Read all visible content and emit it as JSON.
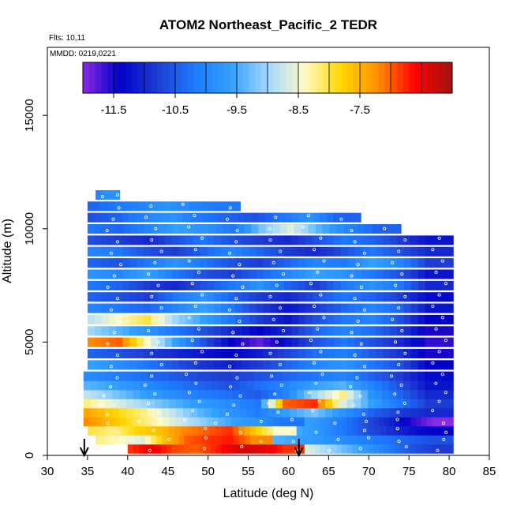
{
  "chart_data": {
    "type": "heatmap",
    "title": "ATOM2 Northeast_Pacific_2 TEDR",
    "flights_label": "Flts: 10,11",
    "dates_label": "MMDD: 0219,0221",
    "xlabel": "Latitude (deg N)",
    "ylabel": "Altitude (m)",
    "xlim": [
      30,
      85
    ],
    "ylim": [
      0,
      18000
    ],
    "x_ticks": [
      "30",
      "35",
      "40",
      "45",
      "50",
      "55",
      "60",
      "65",
      "70",
      "75",
      "80",
      "85"
    ],
    "y_ticks": [
      "0",
      "5000",
      "10000",
      "15000"
    ],
    "colorbar": {
      "range": [
        -12.0,
        -6.0
      ],
      "tick_values": [
        -11.5,
        -10.5,
        -9.5,
        -8.5,
        -7.5
      ],
      "tick_labels": [
        "-11.5",
        "-10.5",
        "-9.5",
        "-8.5",
        "-7.5"
      ],
      "colors": [
        "#8a2be2",
        "#0000c8",
        "#1e3cd2",
        "#1e78ff",
        "#32a0ff",
        "#a0d7ff",
        "#fffac8",
        "#ffd700",
        "#ff8c00",
        "#ff0000",
        "#a01414"
      ]
    },
    "markers": {
      "description": "down arrows at latitude",
      "latitudes": [
        34.6,
        61.3
      ]
    },
    "altitude_bins_m": [
      300,
      700,
      1100,
      1500,
      1900,
      2300,
      2700,
      3100,
      3500,
      4000,
      4500,
      5000,
      5500,
      6000,
      6500,
      7000,
      7500,
      8000,
      8500,
      9000,
      9500,
      10000,
      10500,
      11000,
      11500
    ],
    "rows": [
      {
        "alt": 300,
        "lat_start": 40,
        "lat_end": 62,
        "values": [
          -6.8,
          -6.5,
          -6.9,
          -7.0,
          -6.7,
          -6.3,
          -6.4,
          -6.8
        ]
      },
      {
        "alt": 300,
        "lat_start": 62,
        "lat_end": 80.5,
        "values": [
          -8.6,
          -9.0,
          -9.4,
          -9.8,
          -10.2,
          -10.6,
          -10.8
        ]
      },
      {
        "alt": 700,
        "lat_start": 36,
        "lat_end": 58,
        "values": [
          -8.2,
          -8.4,
          -8.6,
          -7.6,
          -7.0,
          -6.8,
          -6.7,
          -7.2
        ]
      },
      {
        "alt": 700,
        "lat_start": 58,
        "lat_end": 80.5,
        "values": [
          -9.4,
          -9.6,
          -9.8,
          -10.0,
          -10.2,
          -10.4,
          -10.6
        ]
      },
      {
        "alt": 1100,
        "lat_start": 35,
        "lat_end": 61,
        "values": [
          -8.0,
          -8.2,
          -7.8,
          -7.6,
          -7.2,
          -7.0,
          -6.8,
          -7.6,
          -8.4
        ]
      },
      {
        "alt": 1100,
        "lat_start": 61,
        "lat_end": 80.5,
        "values": [
          -9.5,
          -9.8,
          -10.2,
          -10.6,
          -10.9,
          -11.2,
          -11.4
        ]
      },
      {
        "alt": 1500,
        "lat_start": 34.5,
        "lat_end": 62,
        "values": [
          -7.2,
          -7.6,
          -8.0,
          -8.4,
          -8.8,
          -9.2,
          -9.6,
          -9.8,
          -10.2
        ]
      },
      {
        "alt": 1500,
        "lat_start": 62,
        "lat_end": 80.5,
        "values": [
          -9.6,
          -9.9,
          -10.3,
          -10.7,
          -11.1,
          -11.6,
          -12.0
        ]
      },
      {
        "alt": 1900,
        "lat_start": 34.5,
        "lat_end": 80.5,
        "values": [
          -7.4,
          -7.8,
          -8.2,
          -8.8,
          -9.4,
          -9.8,
          -10.1,
          -9.6,
          -9.2,
          -9.8,
          -10.4,
          -10.8,
          -11.0
        ]
      },
      {
        "alt": 2300,
        "lat_start": 34.5,
        "lat_end": 80.5,
        "values": [
          -8.2,
          -8.6,
          -9.0,
          -9.4,
          -9.7,
          -9.9,
          -10.2,
          -7.0,
          -6.8,
          -8.6,
          -9.6,
          -10.2,
          -10.8
        ]
      },
      {
        "alt": 2700,
        "lat_start": 34.5,
        "lat_end": 80.5,
        "values": [
          -8.8,
          -9.2,
          -9.6,
          -9.9,
          -10.1,
          -10.3,
          -10.5,
          -10.0,
          -9.0,
          -8.2,
          -9.8,
          -10.4,
          -11.0
        ]
      },
      {
        "alt": 3100,
        "lat_start": 34.5,
        "lat_end": 80.5,
        "values": [
          -9.4,
          -9.6,
          -9.9,
          -10.2,
          -10.4,
          -10.6,
          -10.3,
          -10.0,
          -9.6,
          -9.4,
          -10.0,
          -10.6,
          -11.2
        ]
      },
      {
        "alt": 3500,
        "lat_start": 34.5,
        "lat_end": 80.5,
        "values": [
          -9.9,
          -10.1,
          -10.3,
          -10.5,
          -10.7,
          -10.8,
          -10.6,
          -10.4,
          -10.2,
          -10.0,
          -10.4,
          -10.8,
          -11.3
        ]
      },
      {
        "alt": 4000,
        "lat_start": 35,
        "lat_end": 80.5,
        "values": [
          -9.6,
          -9.9,
          -10.2,
          -10.6,
          -10.9,
          -11.1,
          -10.8,
          -10.4,
          -10.0,
          -9.8,
          -10.2,
          -10.6,
          -11.4
        ]
      },
      {
        "alt": 4500,
        "lat_start": 35,
        "lat_end": 80.5,
        "values": [
          -10.4,
          -10.6,
          -10.8,
          -11.0,
          -11.2,
          -11.4,
          -11.1,
          -10.7,
          -10.3,
          -10.1,
          -10.5,
          -10.9,
          -11.5
        ]
      },
      {
        "alt": 5000,
        "lat_start": 35,
        "lat_end": 80.5,
        "values": [
          -7.2,
          -7.0,
          -8.4,
          -9.6,
          -10.6,
          -11.4,
          -11.8,
          -11.2,
          -10.6,
          -10.2,
          -10.6,
          -11.0,
          -11.6
        ]
      },
      {
        "alt": 5500,
        "lat_start": 35,
        "lat_end": 80.5,
        "values": [
          -9.0,
          -9.4,
          -9.8,
          -10.2,
          -10.6,
          -11.0,
          -11.4,
          -11.0,
          -10.4,
          -10.0,
          -10.3,
          -10.8,
          -11.5
        ]
      },
      {
        "alt": 6000,
        "lat_start": 35,
        "lat_end": 80.5,
        "values": [
          -8.8,
          -8.4,
          -8.0,
          -9.0,
          -9.6,
          -10.2,
          -10.8,
          -11.2,
          -10.6,
          -10.2,
          -10.0,
          -10.6,
          -11.4
        ]
      },
      {
        "alt": 6500,
        "lat_start": 35,
        "lat_end": 80.5,
        "values": [
          -10.0,
          -10.2,
          -10.4,
          -10.0,
          -9.6,
          -10.2,
          -10.8,
          -11.2,
          -10.8,
          -10.4,
          -10.0,
          -10.4,
          -11.2
        ]
      },
      {
        "alt": 7000,
        "lat_start": 35,
        "lat_end": 80.5,
        "values": [
          -10.4,
          -10.6,
          -10.8,
          -10.2,
          -9.8,
          -10.4,
          -10.8,
          -11.0,
          -10.6,
          -10.2,
          -10.4,
          -10.8,
          -11.3
        ]
      },
      {
        "alt": 7500,
        "lat_start": 35,
        "lat_end": 80.5,
        "values": [
          -10.2,
          -10.4,
          -10.8,
          -11.0,
          -10.6,
          -10.2,
          -9.8,
          -10.4,
          -10.8,
          -10.2,
          -9.8,
          -10.2,
          -11.0
        ]
      },
      {
        "alt": 8000,
        "lat_start": 35,
        "lat_end": 80.5,
        "values": [
          -9.8,
          -10.0,
          -9.6,
          -10.2,
          -10.6,
          -10.8,
          -10.4,
          -10.0,
          -9.6,
          -9.8,
          -10.2,
          -10.6,
          -11.2
        ]
      },
      {
        "alt": 8500,
        "lat_start": 35,
        "lat_end": 80.5,
        "values": [
          -10.4,
          -10.6,
          -10.2,
          -9.8,
          -10.2,
          -10.6,
          -10.8,
          -10.4,
          -10.0,
          -10.2,
          -9.6,
          -10.0,
          -10.8
        ]
      },
      {
        "alt": 9000,
        "lat_start": 35,
        "lat_end": 80.5,
        "values": [
          -10.0,
          -10.2,
          -10.6,
          -10.8,
          -10.4,
          -10.0,
          -10.4,
          -10.8,
          -11.0,
          -10.6,
          -10.2,
          -10.6,
          -11.0
        ]
      },
      {
        "alt": 9500,
        "lat_start": 35,
        "lat_end": 80.5,
        "values": [
          -10.6,
          -10.8,
          -11.0,
          -10.6,
          -10.2,
          -10.6,
          -10.8,
          -11.0,
          -10.6,
          -10.2,
          -10.4,
          -10.8,
          -11.2
        ]
      },
      {
        "alt": 10000,
        "lat_start": 35,
        "lat_end": 74,
        "values": [
          -10.2,
          -10.4,
          -10.0,
          -9.6,
          -9.8,
          -10.2,
          -9.2,
          -8.6,
          -9.4,
          -10.0,
          -10.4
        ]
      },
      {
        "alt": 10500,
        "lat_start": 35,
        "lat_end": 69,
        "values": [
          -10.6,
          -10.4,
          -10.0,
          -9.8,
          -10.2,
          -10.4,
          -10.6,
          -10.2,
          -9.8,
          -10.4
        ]
      },
      {
        "alt": 11000,
        "lat_start": 35,
        "lat_end": 54,
        "values": [
          -10.4,
          -10.2,
          -10.0,
          -9.8,
          -10.0,
          -10.2
        ]
      },
      {
        "alt": 11500,
        "lat_start": 36,
        "lat_end": 39,
        "values": [
          -10.0,
          -9.8
        ]
      }
    ]
  }
}
